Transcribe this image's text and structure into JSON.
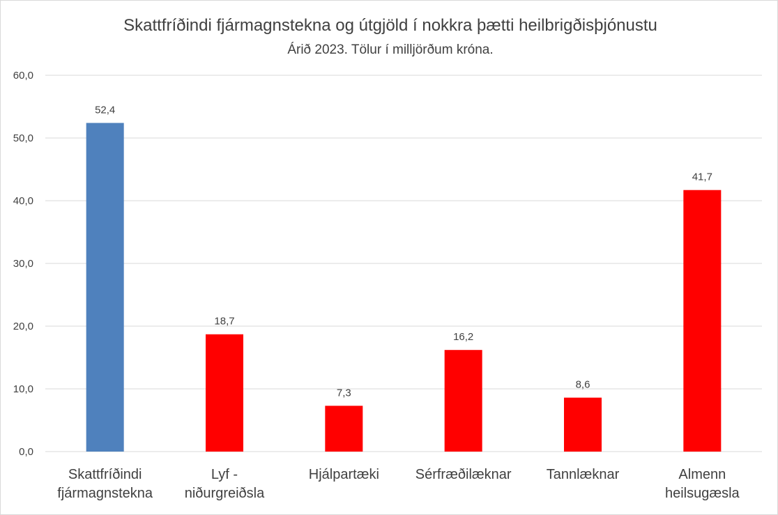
{
  "chart_data": {
    "type": "bar",
    "title": "Skattfríðindi fjármagnstekna og útgjöld í nokkra þætti heilbrigðisþjónustu",
    "subtitle": "Árið 2023. Tölur í milljörðum króna.",
    "categories": [
      [
        "Skattfríðindi",
        "fjármagnstekna"
      ],
      [
        "Lyf -",
        "niðurgreiðsla"
      ],
      [
        "Hjálpartæki"
      ],
      [
        "Sérfræðilæknar"
      ],
      [
        "Tannlæknar"
      ],
      [
        "Almenn",
        "heilsugæsla"
      ]
    ],
    "values": [
      52.4,
      18.7,
      7.3,
      16.2,
      8.6,
      41.7
    ],
    "data_labels": [
      "52,4",
      "18,7",
      "7,3",
      "16,2",
      "8,6",
      "41,7"
    ],
    "bar_colors": [
      "#4f81bd",
      "#ff0000",
      "#ff0000",
      "#ff0000",
      "#ff0000",
      "#ff0000"
    ],
    "ylim": [
      0,
      60
    ],
    "yticks": [
      0,
      10,
      20,
      30,
      40,
      50,
      60
    ],
    "ytick_labels": [
      "0,0",
      "10,0",
      "20,0",
      "30,0",
      "40,0",
      "50,0",
      "60,0"
    ],
    "grid": true,
    "legend": "none"
  }
}
